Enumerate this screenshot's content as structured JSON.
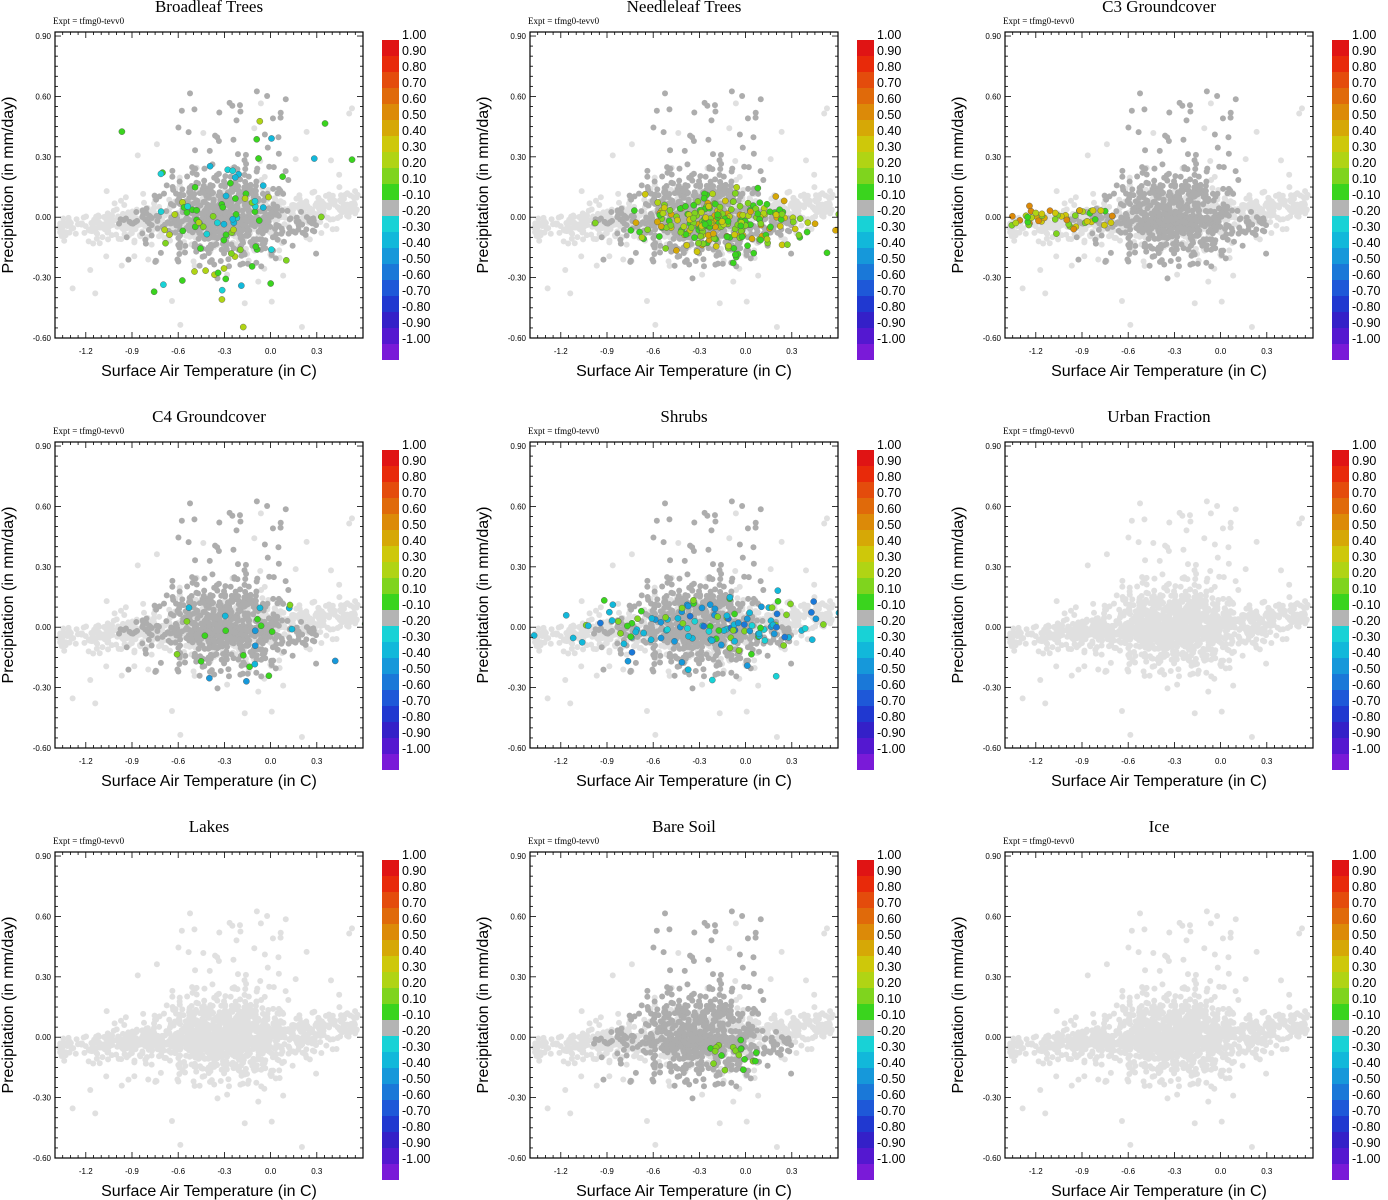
{
  "chart_data": {
    "type": "scatter",
    "panels": [
      {
        "title": "Broadleaf Trees",
        "highlight": {
          "type": "blob",
          "cx": -0.3,
          "cy": 0.02,
          "sx": 0.28,
          "sy": 0.2,
          "n": 85,
          "vals": [
            0.1,
            0.1,
            0.1,
            0.2,
            0.3,
            -0.2,
            -0.3
          ]
        }
      },
      {
        "title": "Needleleaf Trees",
        "highlight": {
          "type": "blob",
          "cx": -0.15,
          "cy": -0.02,
          "sx": 0.3,
          "sy": 0.07,
          "n": 230,
          "vals": [
            0.1,
            0.1,
            0.2,
            0.2,
            0.3,
            0.4,
            0.5
          ]
        }
      },
      {
        "title": "C3 Groundcover",
        "highlight": {
          "type": "band",
          "x0": -1.38,
          "x1": -0.7,
          "cy": 0.0,
          "sy": 0.03,
          "n": 50,
          "vals": [
            0.3,
            0.4,
            0.5,
            0.6,
            0.2,
            0.1
          ]
        }
      },
      {
        "title": "C4 Groundcover",
        "highlight": {
          "type": "blob",
          "cx": -0.2,
          "cy": -0.08,
          "sx": 0.3,
          "sy": 0.15,
          "n": 24,
          "vals": [
            0.1,
            0.1,
            0.2,
            -0.3,
            -0.4
          ]
        }
      },
      {
        "title": "Shrubs",
        "highlight": {
          "type": "blob",
          "cx": -0.2,
          "cy": 0.0,
          "sx": 0.45,
          "sy": 0.08,
          "n": 130,
          "vals": [
            -0.2,
            -0.3,
            -0.4,
            -0.5,
            -0.3,
            0.1,
            0.2
          ]
        }
      },
      {
        "title": "Urban Fraction",
        "highlight": {
          "type": "none"
        }
      },
      {
        "title": "Lakes",
        "highlight": {
          "type": "none"
        }
      },
      {
        "title": "Bare Soil",
        "highlight": {
          "type": "blob",
          "cx": -0.1,
          "cy": -0.08,
          "sx": 0.12,
          "sy": 0.04,
          "n": 18,
          "vals": [
            0.1,
            0.1,
            0.2
          ]
        }
      },
      {
        "title": "Ice",
        "highlight": {
          "type": "none"
        }
      }
    ],
    "expt_label": "Expt = tfmg0-tevv0",
    "xlabel": "Surface Air Temperature (in C)",
    "ylabel": "Precipitation (in mm/day)",
    "xlim": [
      -1.4,
      0.6
    ],
    "ylim": [
      -0.6,
      0.92
    ],
    "xticks": [
      "-1.2",
      "-0.9",
      "-0.6",
      "-0.3",
      "0.0",
      "0.3"
    ],
    "yticks": [
      "0.90",
      "0.60",
      "0.30",
      "0.00",
      "-0.30",
      "-0.60"
    ],
    "xtick_values": [
      -1.2,
      -0.9,
      -0.6,
      -0.3,
      0.0,
      0.3
    ],
    "ytick_values": [
      0.9,
      0.6,
      0.3,
      0.0,
      -0.3,
      -0.6
    ],
    "colorbar_labels": [
      "1.00",
      "0.90",
      "0.80",
      "0.70",
      "0.60",
      "0.50",
      "0.40",
      "0.30",
      "0.20",
      "0.10",
      "-0.10",
      "-0.20",
      "-0.30",
      "-0.40",
      "-0.50",
      "-0.60",
      "-0.70",
      "-0.80",
      "-0.90",
      "-1.00"
    ],
    "colorbar_colors": [
      "#e01414",
      "#e82a0a",
      "#e44c0c",
      "#e06a0a",
      "#dc8a08",
      "#d6a806",
      "#cec80a",
      "#b0d414",
      "#7fd41e",
      "#3ad41e",
      "#b4b4b4",
      "#18d2d6",
      "#12b8da",
      "#1698da",
      "#1a78d8",
      "#1e58d8",
      "#2038d0",
      "#3420c8",
      "#5418d0",
      "#7a1ad8"
    ],
    "neutral_colors": {
      "light": "#e0e0e0",
      "dark": "#adadad"
    }
  }
}
